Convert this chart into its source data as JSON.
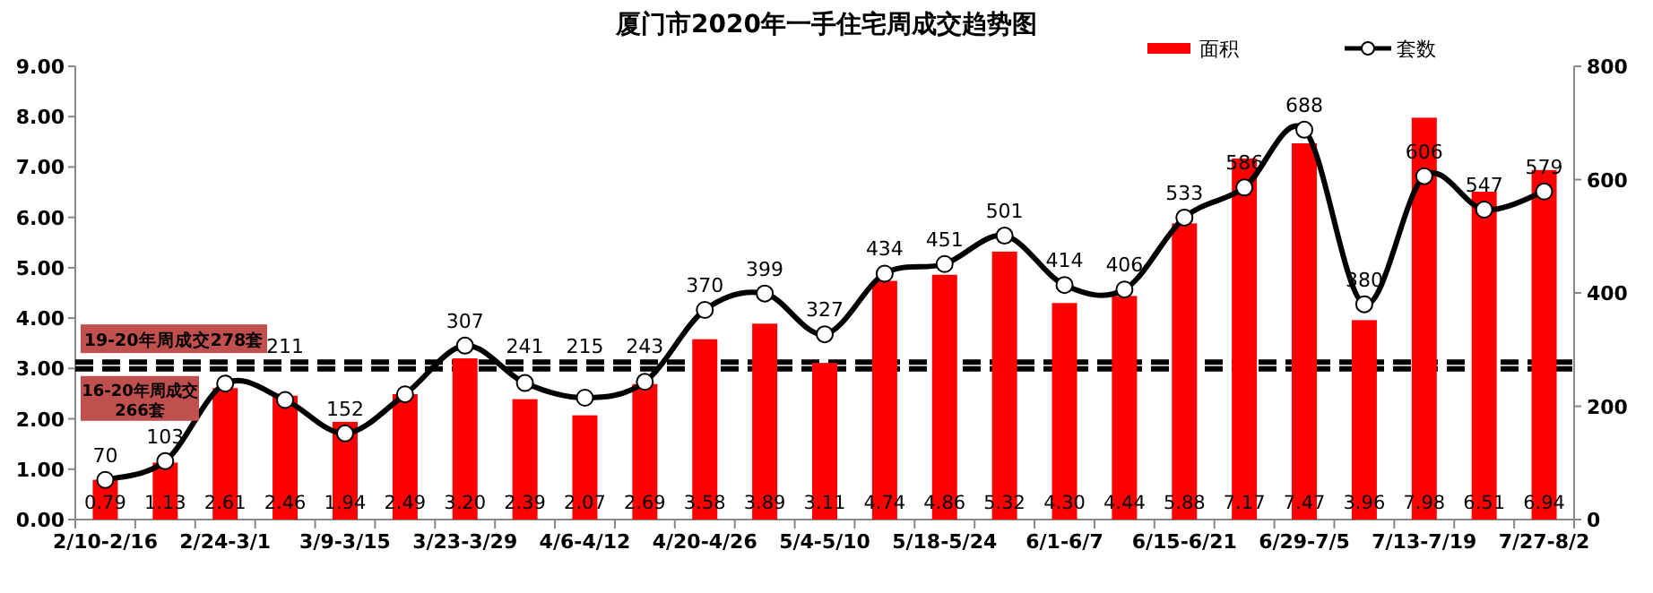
{
  "chart_data": {
    "type": "bar",
    "title": "厦门市2020年一手住宅周成交趋势图",
    "categories": [
      "2/10-2/16",
      null,
      "2/24-3/1",
      null,
      "3/9-3/15",
      null,
      "3/23-3/29",
      null,
      "4/6-4/12",
      null,
      "4/20-4/26",
      null,
      "5/4-5/10",
      null,
      "5/18-5/24",
      null,
      "6/1-6/7",
      null,
      "6/15-6/21",
      null,
      "6/29-7/5",
      null,
      "7/13-7/19",
      null,
      "7/27-8/2"
    ],
    "series": [
      {
        "name": "面积",
        "color": "#ff0000",
        "values": [
          0.79,
          1.13,
          2.61,
          2.46,
          1.94,
          2.49,
          3.2,
          2.39,
          2.07,
          2.69,
          3.58,
          3.89,
          3.11,
          4.74,
          4.86,
          5.32,
          4.3,
          4.44,
          5.88,
          7.17,
          7.47,
          3.96,
          7.98,
          6.51,
          6.94
        ],
        "value_labels": [
          "0.79",
          "1.13",
          "2.61",
          "2.46",
          "1.94",
          "2.49",
          "3.20",
          "2.39",
          "2.07",
          "2.69",
          "3.58",
          "3.89",
          "3.11",
          "4.74",
          "4.86",
          "5.32",
          "4.30",
          "4.44",
          "5.88",
          "7.17",
          "7.47",
          "3.96",
          "7.98",
          "6.51",
          "6.94"
        ]
      },
      {
        "name": "套数",
        "type": "line",
        "axis": "y2",
        "color": "#000000",
        "marker": "circle",
        "values": [
          70,
          103,
          240,
          211,
          152,
          221,
          307,
          241,
          215,
          243,
          370,
          399,
          327,
          434,
          451,
          501,
          414,
          406,
          533,
          586,
          688,
          380,
          606,
          547,
          579
        ],
        "value_labels": [
          "70",
          "103",
          null,
          "211",
          "152",
          null,
          "307",
          "241",
          "215",
          "243",
          "370",
          "399",
          "327",
          "434",
          "451",
          "501",
          "414",
          "406",
          "533",
          "586",
          "688",
          "380",
          "606",
          "547",
          "579"
        ]
      }
    ],
    "ylim": [
      0,
      9
    ],
    "yticks": [
      {
        "value": 0,
        "label": "0.00"
      },
      {
        "value": 1,
        "label": "1.00"
      },
      {
        "value": 2,
        "label": "2.00"
      },
      {
        "value": 3,
        "label": "3.00"
      },
      {
        "value": 4,
        "label": "4.00"
      },
      {
        "value": 5,
        "label": "5.00"
      },
      {
        "value": 6,
        "label": "6.00"
      },
      {
        "value": 7,
        "label": "7.00"
      },
      {
        "value": 8,
        "label": "8.00"
      },
      {
        "value": 9,
        "label": "9.00"
      }
    ],
    "y2lim": [
      0,
      800
    ],
    "y2ticks": [
      0,
      200,
      400,
      600,
      800
    ],
    "ref_lines": [
      {
        "axis": "y2",
        "value": 266,
        "label": "16-20年周成交266套",
        "color": "#000000",
        "line_style": "dashed"
      },
      {
        "axis": "y2",
        "value": 278,
        "label": "19-20年周成交278套",
        "color": "#000000",
        "line_style": "dashed"
      }
    ],
    "legend": "top right",
    "grid": false
  }
}
